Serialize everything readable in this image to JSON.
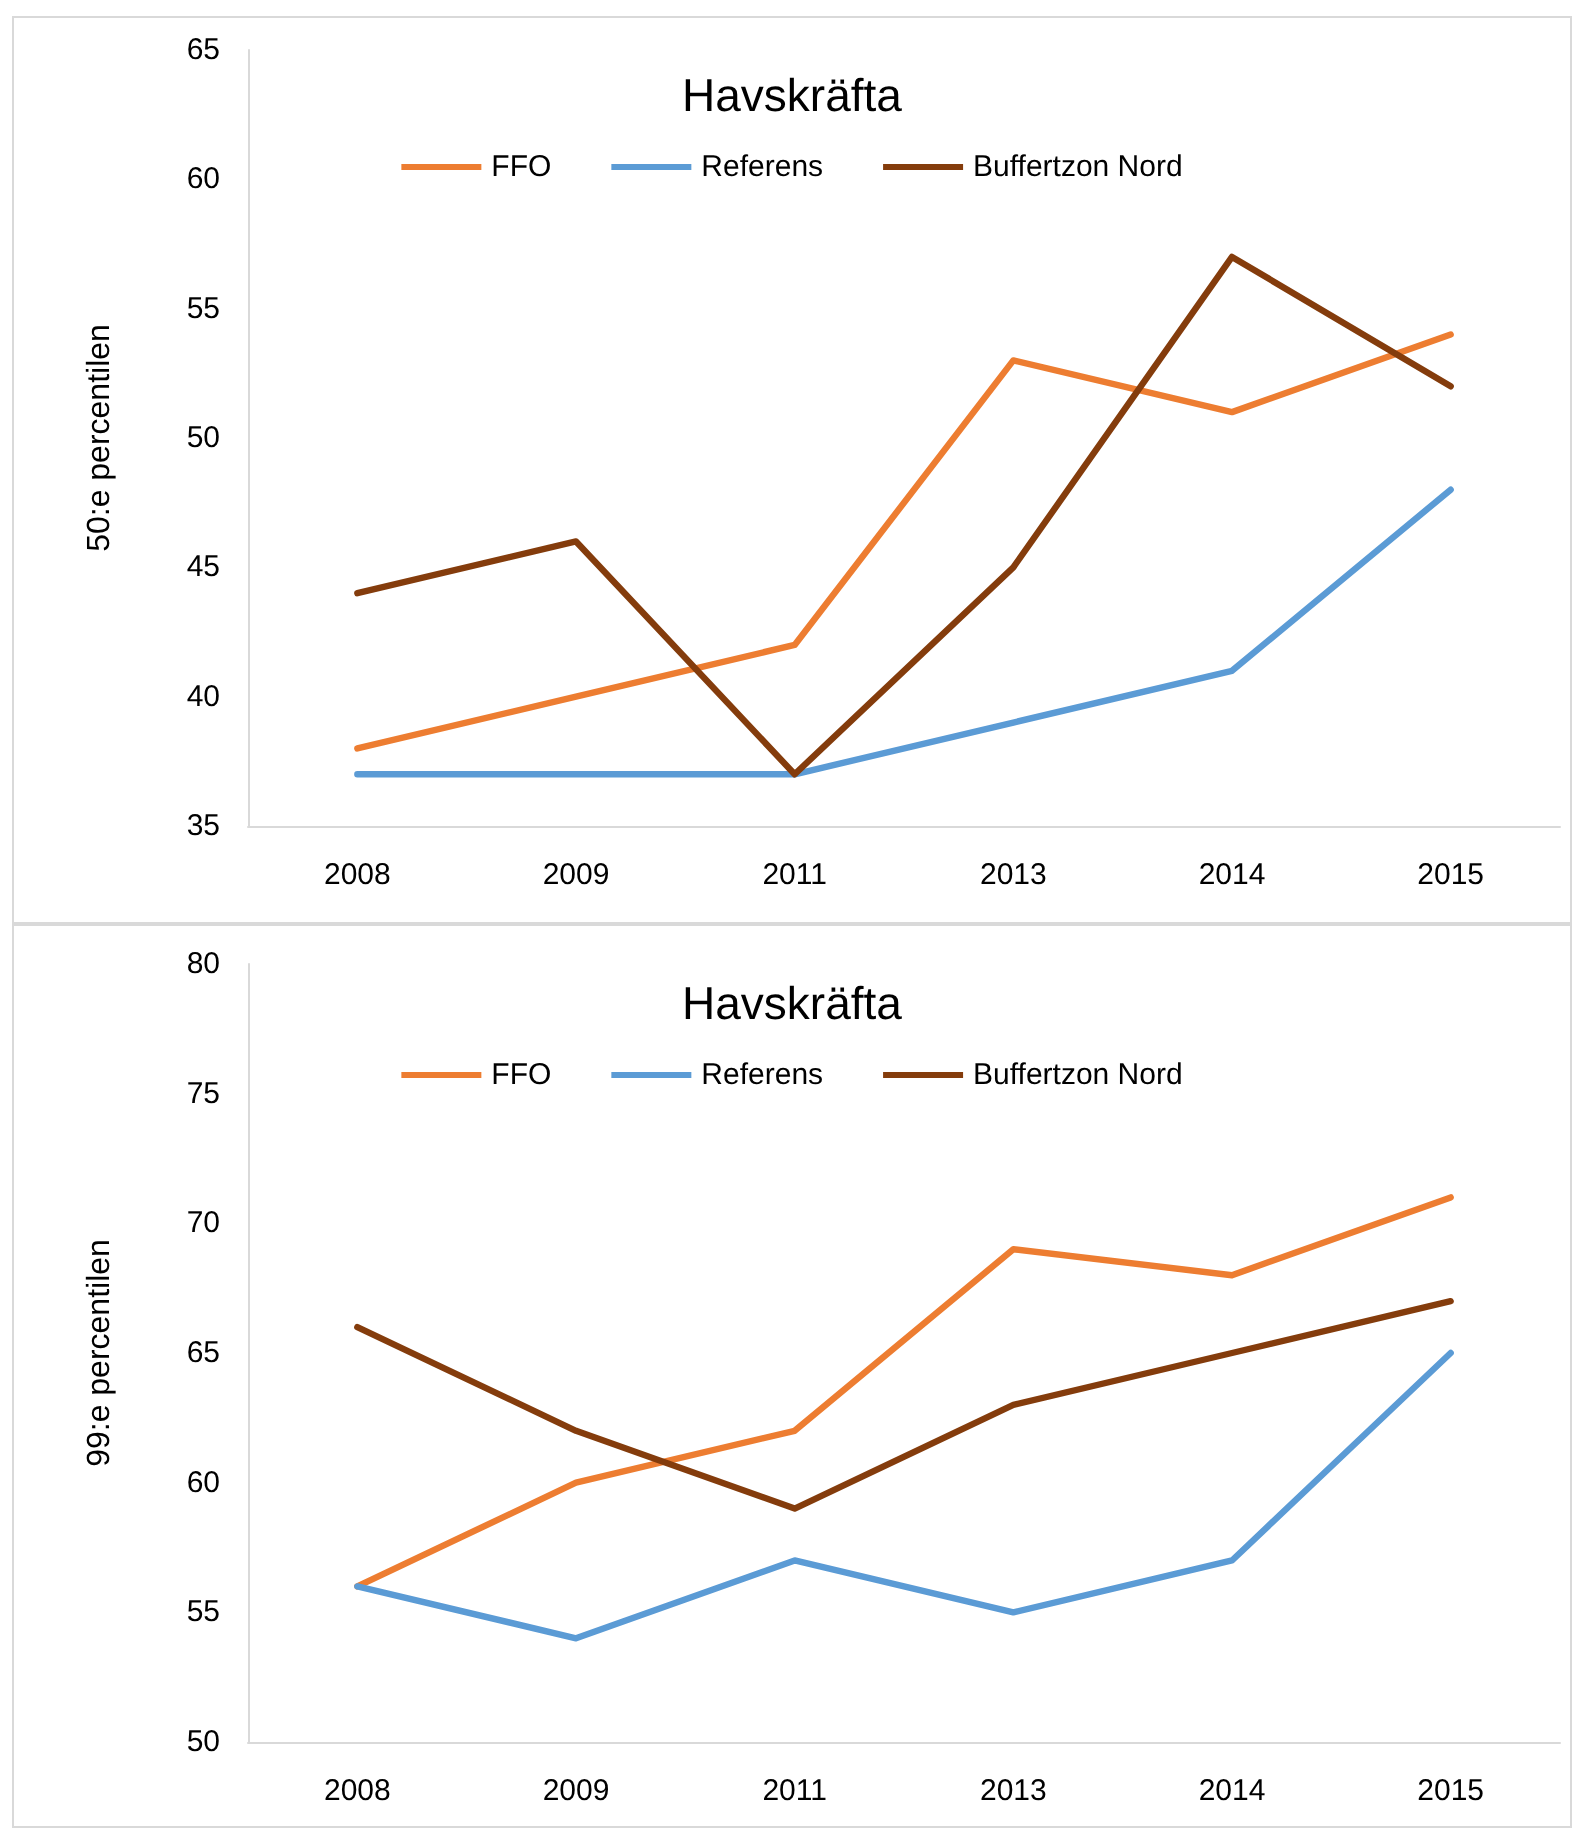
{
  "chart_data": [
    {
      "type": "line",
      "title": "Havskräfta",
      "ylabel": "50:e percentilen",
      "categories": [
        "2008",
        "2009",
        "2011",
        "2013",
        "2014",
        "2015"
      ],
      "series": [
        {
          "name": "FFO",
          "color": "#ed7d31",
          "values": [
            38,
            40,
            42,
            53,
            51,
            54
          ]
        },
        {
          "name": "Referens",
          "color": "#5b9bd5",
          "values": [
            37,
            37,
            37,
            39,
            41,
            48
          ]
        },
        {
          "name": "Buffertzon Nord",
          "color": "#843c0c",
          "values": [
            44,
            46,
            37,
            45,
            57,
            52
          ]
        }
      ],
      "ylim": [
        35,
        65
      ],
      "yticks": [
        35,
        40,
        45,
        50,
        55,
        60,
        65
      ],
      "grid": false,
      "legend": "top",
      "marker": "none",
      "line_style": "solid"
    },
    {
      "type": "line",
      "title": "Havskräfta",
      "ylabel": "99:e percentilen",
      "categories": [
        "2008",
        "2009",
        "2011",
        "2013",
        "2014",
        "2015"
      ],
      "series": [
        {
          "name": "FFO",
          "color": "#ed7d31",
          "values": [
            56,
            60,
            62,
            69,
            68,
            71
          ]
        },
        {
          "name": "Referens",
          "color": "#5b9bd5",
          "values": [
            56,
            54,
            57,
            55,
            57,
            65
          ]
        },
        {
          "name": "Buffertzon Nord",
          "color": "#843c0c",
          "values": [
            66,
            62,
            59,
            63,
            65,
            67
          ]
        }
      ],
      "ylim": [
        50,
        80
      ],
      "yticks": [
        50,
        55,
        60,
        65,
        70,
        75,
        80
      ],
      "grid": false,
      "legend": "top",
      "marker": "none",
      "line_style": "solid"
    }
  ]
}
